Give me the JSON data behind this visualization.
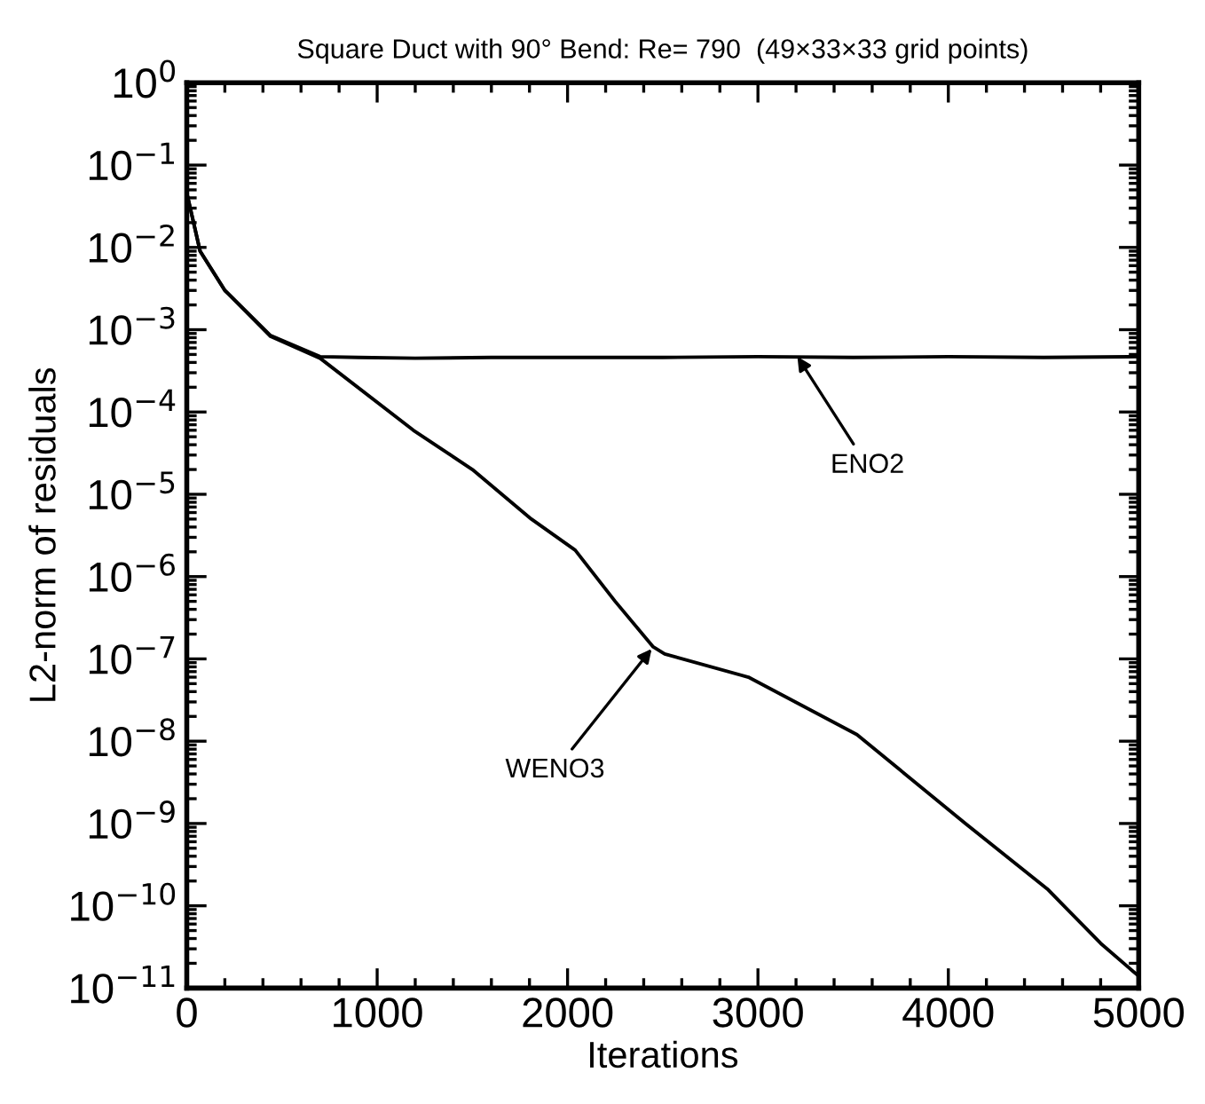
{
  "chart_data": {
    "type": "line",
    "title": "Square Duct with 90° Bend: Re= 790  (49×33×33 grid points)",
    "xlabel": "Iterations",
    "ylabel": "L2-norm of residuals",
    "log": "y",
    "xlim": [
      0,
      5000
    ],
    "xticks": [
      0,
      1000,
      2000,
      3000,
      4000,
      5000
    ],
    "ylim": [
      1e-11,
      1
    ],
    "yticks": [
      {
        "value": 1,
        "label": "10$^{0}$"
      },
      {
        "value": 0.1,
        "label": "10$^{−1}$"
      },
      {
        "value": 0.01,
        "label": "10$^{−2}$"
      },
      {
        "value": 0.001,
        "label": "10$^{−3}$"
      },
      {
        "value": 0.0001,
        "label": "10$^{−4}$"
      },
      {
        "value": 1e-05,
        "label": "10$^{−5}$"
      },
      {
        "value": 1e-06,
        "label": "10$^{−6}$"
      },
      {
        "value": 1e-07,
        "label": "10$^{−7}$"
      },
      {
        "value": 1e-08,
        "label": "10$^{−8}$"
      },
      {
        "value": 1e-09,
        "label": "10$^{−9}$"
      },
      {
        "value": 1e-10,
        "label": "10$^{−10}$"
      },
      {
        "value": 1e-11,
        "label": "10$^{−11}$"
      }
    ],
    "grid": false,
    "line_style": "solid",
    "marker": "none",
    "series": [
      {
        "color": "#000000",
        "x": [
          0,
          70,
          200,
          440,
          700,
          900,
          1200,
          1600,
          2000,
          2500,
          3000,
          3500,
          4000,
          4500,
          5000
        ],
        "values": [
          0.046,
          0.009,
          0.003,
          0.00085,
          0.00047,
          0.00046,
          0.00045,
          0.00046,
          0.00046,
          0.00046,
          0.00047,
          0.00046,
          0.00047,
          0.00046,
          0.00047
        ]
      },
      {
        "color": "#000000",
        "x": [
          0,
          70,
          200,
          440,
          700,
          1190,
          1500,
          1810,
          2040,
          2250,
          2450,
          2510,
          2950,
          3520,
          4090,
          4520,
          4800,
          4970,
          5000
        ],
        "values": [
          0.046,
          0.009,
          0.003,
          0.00083,
          0.00045,
          6e-05,
          2e-05,
          5e-06,
          2.1e-06,
          5e-07,
          1.4e-07,
          1.15e-07,
          6e-08,
          1.2e-08,
          1e-09,
          1.6e-10,
          3.5e-11,
          1.6e-11,
          1.4e-11
        ]
      }
    ],
    "annotations": [
      {
        "text": "ENO2",
        "x": 3200,
        "y": 0.0005
      },
      {
        "text": "WENO3",
        "x": 2450,
        "y": 1.4e-07
      }
    ]
  }
}
